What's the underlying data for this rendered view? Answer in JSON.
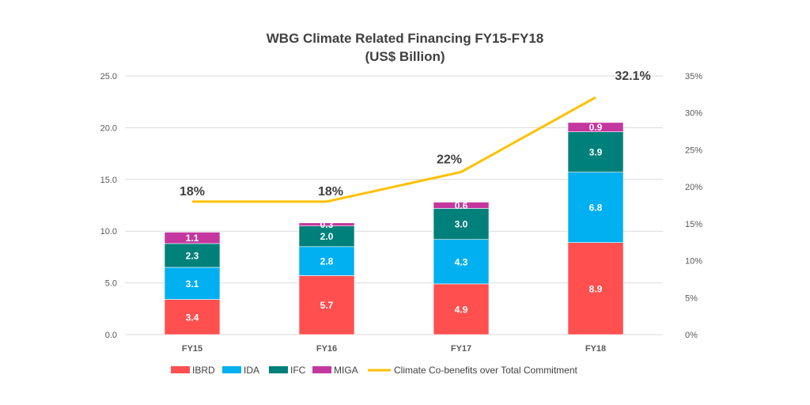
{
  "chart_data": {
    "type": "bar",
    "stacked": true,
    "title": "WBG Climate Related Financing FY15-FY18",
    "subtitle": "(US$ Billion)",
    "categories": [
      "FY15",
      "FY16",
      "FY17",
      "FY18"
    ],
    "series": [
      {
        "name": "IBRD",
        "values": [
          3.4,
          5.7,
          4.9,
          8.9
        ],
        "color": "#FF4F4F"
      },
      {
        "name": "IDA",
        "values": [
          3.1,
          2.8,
          4.3,
          6.8
        ],
        "color": "#00B0F0"
      },
      {
        "name": "IFC",
        "values": [
          2.3,
          2.0,
          3.0,
          3.9
        ],
        "color": "#00807A"
      },
      {
        "name": "MIGA",
        "values": [
          1.1,
          0.3,
          0.6,
          0.9
        ],
        "color": "#C4379F"
      }
    ],
    "line_series": {
      "name": "Climate Co-benefits over Total Commitment",
      "values": [
        18,
        18,
        22,
        32.1
      ],
      "labels": [
        "18%",
        "18%",
        "22%",
        "32.1%"
      ],
      "color": "#FFC000",
      "axis": "right"
    },
    "ylim": [
      0,
      25
    ],
    "yticks": [
      "0.0",
      "5.0",
      "10.0",
      "15.0",
      "20.0",
      "25.0"
    ],
    "y2lim": [
      0,
      35
    ],
    "y2ticks": [
      "0%",
      "5%",
      "10%",
      "15%",
      "20%",
      "25%",
      "30%",
      "35%"
    ],
    "grid": true,
    "legend": "bottom"
  }
}
